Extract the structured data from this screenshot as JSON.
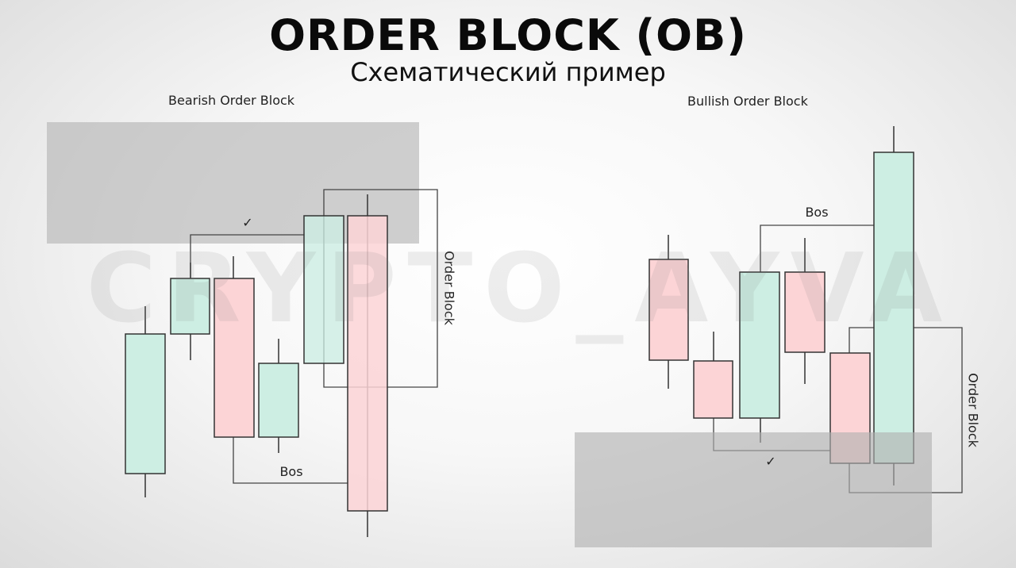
{
  "header": {
    "title": "ORDER BLOCK (OB)",
    "subtitle": "Схематический пример"
  },
  "watermark": {
    "text": "CRYPTO_AYVA"
  },
  "colors": {
    "bull_fill": "#cdeee3",
    "bear_fill": "#fcd4d6",
    "wick": "#333333",
    "ob_zone": "#b8b8b8",
    "connector": "#444444"
  },
  "bearish": {
    "label": "Bearish Order Block",
    "bos_label": "Bos",
    "order_block_label": "Order Block",
    "check_mark": "✓"
  },
  "bullish": {
    "label": "Bullish Order Block",
    "bos_label": "Bos",
    "order_block_label": "Order Block",
    "check_mark": "✓"
  }
}
